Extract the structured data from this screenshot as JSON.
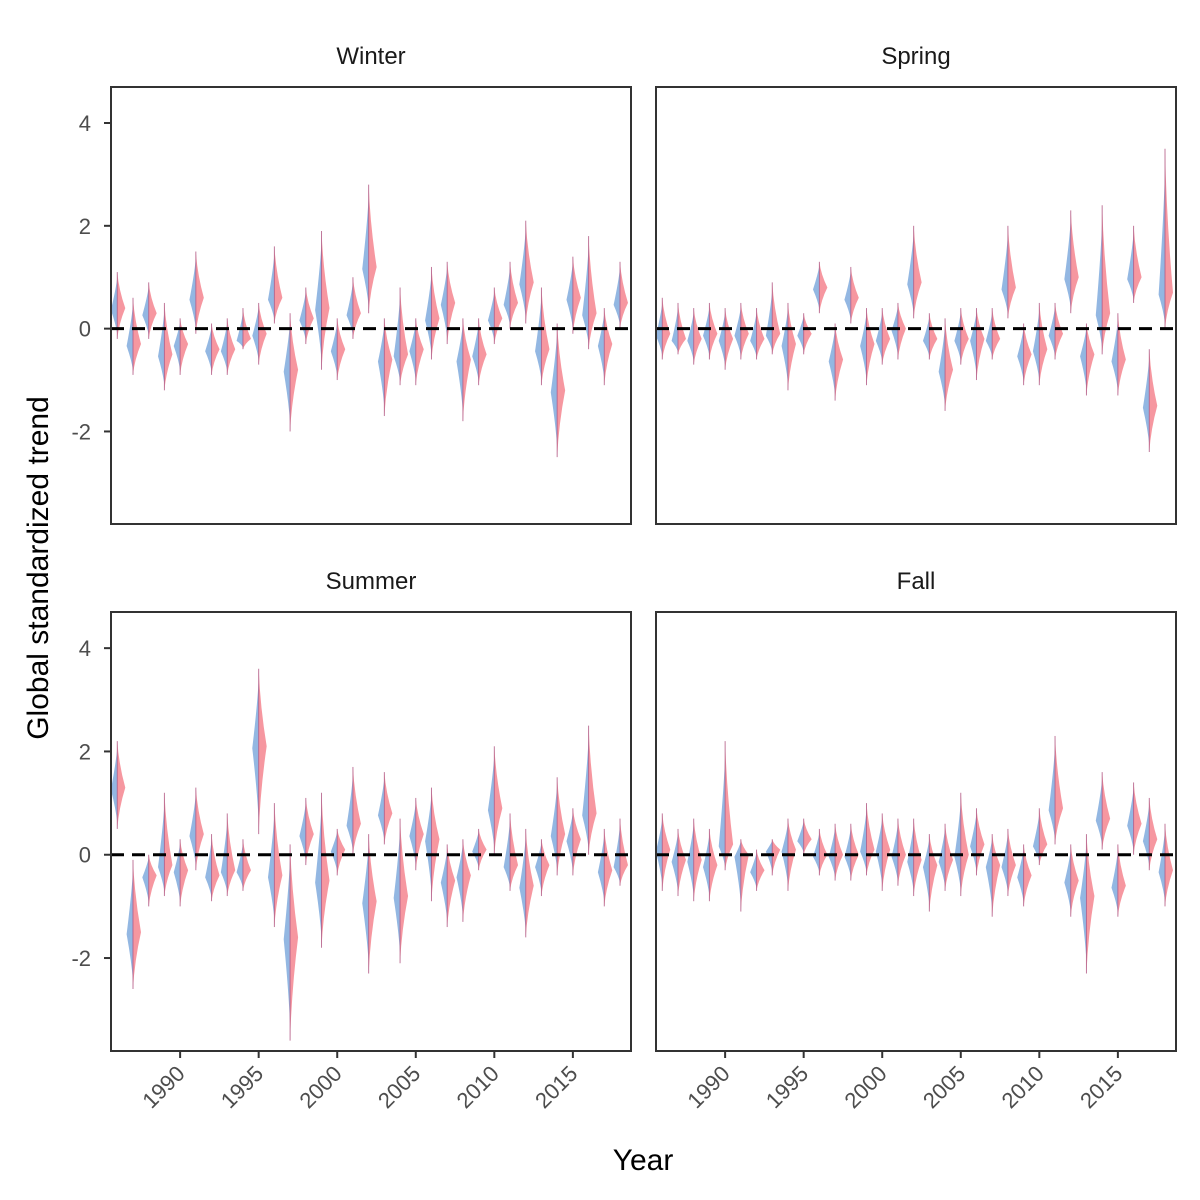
{
  "chart_data": {
    "type": "violin",
    "ylabel": "Global standardized trend",
    "xlabel": "Year",
    "xlim": [
      1985.6,
      2018.7
    ],
    "ylim": [
      -3.8,
      4.7
    ],
    "x_ticks": [
      1990,
      1995,
      2000,
      2005,
      2010,
      2015
    ],
    "x_tick_labels": [
      "1990",
      "1995",
      "2000",
      "2005",
      "2010",
      "2015"
    ],
    "y_ticks": [
      -2,
      0,
      2,
      4
    ],
    "y_tick_labels": [
      "-2",
      "0",
      "2",
      "4"
    ],
    "reference_line": {
      "y": 0,
      "style": "dashed",
      "color": "#000000"
    },
    "colors": {
      "blue": "#6f9fd8",
      "red": "#f26b78",
      "overlap": "#b05a86"
    },
    "years": [
      1986,
      1987,
      1988,
      1989,
      1990,
      1991,
      1992,
      1993,
      1994,
      1995,
      1996,
      1997,
      1998,
      1999,
      2000,
      2001,
      2002,
      2003,
      2004,
      2005,
      2006,
      2007,
      2008,
      2009,
      2010,
      2011,
      2012,
      2013,
      2014,
      2015,
      2016,
      2017,
      2018
    ],
    "panels": [
      {
        "title": "Winter",
        "values": [
          0.4,
          -0.3,
          0.3,
          -0.5,
          -0.3,
          0.6,
          -0.4,
          -0.4,
          -0.2,
          -0.1,
          0.6,
          -0.8,
          0.2,
          0.4,
          -0.4,
          0.3,
          1.2,
          -0.6,
          -0.5,
          -0.4,
          0.2,
          0.5,
          -0.6,
          -0.5,
          0.2,
          0.5,
          0.9,
          -0.4,
          -1.2,
          0.6,
          0.3,
          -0.3,
          0.5
        ],
        "mins": [
          -0.2,
          -0.9,
          -0.2,
          -1.2,
          -0.9,
          -0.1,
          -0.9,
          -0.9,
          -0.4,
          -0.7,
          0.1,
          -2.0,
          -0.3,
          -0.8,
          -1.0,
          -0.2,
          0.3,
          -1.7,
          -1.1,
          -1.1,
          -0.6,
          -0.3,
          -1.8,
          -1.1,
          -0.3,
          0.0,
          0.1,
          -1.1,
          -2.5,
          -0.1,
          -0.4,
          -1.1,
          0.0
        ],
        "maxs": [
          1.1,
          0.6,
          0.9,
          0.5,
          0.2,
          1.5,
          0.1,
          0.2,
          0.4,
          0.5,
          1.6,
          0.3,
          0.8,
          1.9,
          0.2,
          1.0,
          2.8,
          0.2,
          0.8,
          0.2,
          1.2,
          1.3,
          0.2,
          0.2,
          0.8,
          1.3,
          2.1,
          0.8,
          0.1,
          1.4,
          1.8,
          0.4,
          1.3
        ]
      },
      {
        "title": "Spring",
        "values": [
          -0.1,
          -0.2,
          -0.2,
          -0.1,
          -0.2,
          -0.1,
          -0.2,
          -0.1,
          -0.3,
          -0.1,
          0.8,
          -0.6,
          0.6,
          -0.3,
          -0.2,
          0.0,
          0.9,
          -0.2,
          -0.8,
          -0.2,
          -0.2,
          -0.2,
          0.8,
          -0.5,
          -0.4,
          -0.1,
          1.0,
          -0.5,
          0.3,
          -0.6,
          1.0,
          -1.5,
          0.7
        ],
        "mins": [
          -0.6,
          -0.5,
          -0.7,
          -0.6,
          -0.8,
          -0.6,
          -0.6,
          -0.5,
          -1.2,
          -0.5,
          0.3,
          -1.4,
          0.1,
          -1.1,
          -0.7,
          -0.6,
          0.2,
          -0.6,
          -1.6,
          -0.7,
          -1.0,
          -0.6,
          0.2,
          -1.1,
          -1.1,
          -0.6,
          0.3,
          -1.3,
          -0.5,
          -1.3,
          0.5,
          -2.4,
          0.0
        ],
        "maxs": [
          0.6,
          0.5,
          0.4,
          0.5,
          0.4,
          0.5,
          0.4,
          0.9,
          0.5,
          0.3,
          1.3,
          0.1,
          1.2,
          0.4,
          0.4,
          0.5,
          2.0,
          0.3,
          0.2,
          0.4,
          0.4,
          0.4,
          2.0,
          0.1,
          0.5,
          0.5,
          2.3,
          0.1,
          2.4,
          0.3,
          2.0,
          -0.4,
          3.5
        ]
      },
      {
        "title": "Summer",
        "values": [
          1.3,
          -1.5,
          -0.4,
          -0.2,
          -0.3,
          0.4,
          -0.4,
          -0.3,
          -0.3,
          2.1,
          -0.4,
          -1.6,
          0.4,
          -0.5,
          0.1,
          0.6,
          -0.9,
          0.8,
          -0.8,
          0.4,
          0.3,
          -0.5,
          -0.4,
          0.1,
          0.9,
          -0.2,
          -0.6,
          -0.2,
          0.4,
          0.3,
          0.8,
          -0.3,
          -0.2
        ],
        "mins": [
          0.5,
          -2.6,
          -1.0,
          -0.8,
          -1.0,
          -0.3,
          -0.9,
          -0.8,
          -0.7,
          0.4,
          -1.4,
          -3.6,
          -0.2,
          -1.8,
          -0.4,
          0.0,
          -2.3,
          0.2,
          -2.1,
          -0.3,
          -0.9,
          -1.4,
          -1.3,
          -0.3,
          0.0,
          -0.7,
          -1.6,
          -0.8,
          -0.4,
          -0.4,
          0.0,
          -1.0,
          -0.6
        ],
        "maxs": [
          2.2,
          -0.1,
          0.0,
          1.2,
          0.3,
          1.3,
          0.4,
          0.8,
          0.3,
          3.6,
          1.0,
          0.2,
          1.1,
          1.2,
          0.5,
          1.7,
          0.4,
          1.6,
          0.7,
          1.1,
          1.3,
          0.2,
          0.3,
          0.5,
          2.1,
          0.8,
          0.5,
          0.3,
          1.5,
          0.9,
          2.5,
          0.5,
          0.7
        ]
      },
      {
        "title": "Fall",
        "values": [
          0.1,
          -0.1,
          -0.1,
          -0.2,
          0.2,
          0.0,
          -0.3,
          0.1,
          0.1,
          0.3,
          0.0,
          0.0,
          0.0,
          0.1,
          0.1,
          0.0,
          -0.1,
          -0.2,
          -0.1,
          0.0,
          0.2,
          -0.2,
          -0.2,
          -0.4,
          0.2,
          0.9,
          -0.5,
          -0.8,
          0.7,
          -0.6,
          0.6,
          0.3,
          -0.3
        ],
        "mins": [
          -0.7,
          -0.8,
          -0.9,
          -0.9,
          -0.3,
          -1.1,
          -0.7,
          -0.4,
          -0.7,
          0.0,
          -0.4,
          -0.5,
          -0.5,
          -0.4,
          -0.7,
          -0.6,
          -0.8,
          -1.1,
          -0.7,
          -0.8,
          -0.4,
          -1.2,
          -0.8,
          -1.0,
          -0.2,
          0.2,
          -1.2,
          -2.3,
          0.1,
          -1.2,
          0.0,
          -0.3,
          -1.0
        ],
        "maxs": [
          0.8,
          0.5,
          0.7,
          0.5,
          2.2,
          0.3,
          0.1,
          0.3,
          0.7,
          0.7,
          0.5,
          0.6,
          0.6,
          1.0,
          0.8,
          0.7,
          0.7,
          0.4,
          0.6,
          1.2,
          0.9,
          0.4,
          0.5,
          0.2,
          0.9,
          2.3,
          0.2,
          0.4,
          1.6,
          0.2,
          1.4,
          1.1,
          0.6
        ]
      }
    ]
  }
}
